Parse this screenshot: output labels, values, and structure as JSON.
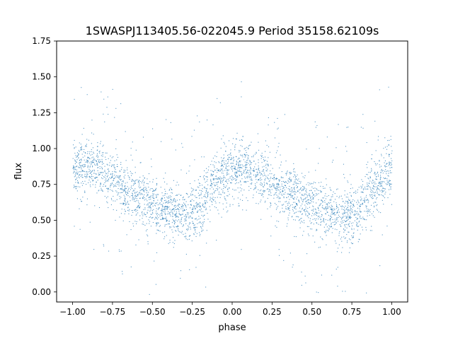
{
  "chart_data": {
    "type": "scatter",
    "title": "1SWASPJ113405.56-022045.9 Period 35158.62109s",
    "xlabel": "phase",
    "ylabel": "flux",
    "xlim": [
      -1.1,
      1.1
    ],
    "ylim": [
      -0.07,
      1.75
    ],
    "xticks": [
      -1.0,
      -0.75,
      -0.5,
      -0.25,
      0.0,
      0.25,
      0.5,
      0.75,
      1.0
    ],
    "xtick_labels": [
      "−1.00",
      "−0.75",
      "−0.50",
      "−0.25",
      "0.00",
      "0.25",
      "0.50",
      "0.75",
      "1.00"
    ],
    "yticks": [
      0.0,
      0.25,
      0.5,
      0.75,
      1.0,
      1.25,
      1.5,
      1.75
    ],
    "ytick_labels": [
      "0.00",
      "0.25",
      "0.50",
      "0.75",
      "1.00",
      "1.25",
      "1.50",
      "1.75"
    ],
    "grid": false,
    "marker_color": "#1f77b4",
    "series": [
      {
        "phase": [
          -1.0,
          -0.9,
          -0.8,
          -0.7,
          -0.6,
          -0.5,
          -0.4,
          -0.3,
          -0.2,
          -0.1,
          0.0,
          0.1,
          0.2,
          0.3,
          0.4,
          0.5,
          0.6,
          0.7,
          0.8,
          0.9,
          1.0
        ],
        "flux_center": [
          0.86,
          0.87,
          0.82,
          0.74,
          0.66,
          0.6,
          0.55,
          0.52,
          0.6,
          0.78,
          0.87,
          0.84,
          0.78,
          0.72,
          0.65,
          0.6,
          0.55,
          0.52,
          0.58,
          0.74,
          0.86
        ],
        "flux_spread": 0.1
      }
    ]
  }
}
